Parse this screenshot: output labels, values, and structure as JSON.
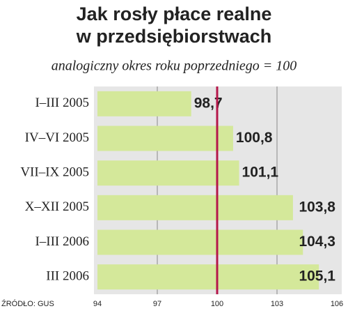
{
  "chart_data": {
    "type": "bar",
    "orientation": "horizontal",
    "title": "Jak rosły płace realne\nw przedsiębiorstwach",
    "subtitle": "analogiczny okres roku poprzedniego = 100",
    "source": "ŹRÓDŁO: GUS",
    "categories": [
      "I–III 2005",
      "IV–VI 2005",
      "VII–IX 2005",
      "X–XII 2005",
      "I–III 2006",
      "III 2006"
    ],
    "values": [
      98.7,
      100.8,
      101.1,
      103.8,
      104.3,
      105.1
    ],
    "value_labels": [
      "98,7",
      "100,8",
      "101,1",
      "103,8",
      "104,3",
      "105,1"
    ],
    "color": "#d4e89a",
    "xlim": [
      94,
      106
    ],
    "xticks": [
      94,
      97,
      100,
      103,
      106
    ],
    "grid": true,
    "reference_line": 100,
    "reference_color": "#b5174a"
  }
}
